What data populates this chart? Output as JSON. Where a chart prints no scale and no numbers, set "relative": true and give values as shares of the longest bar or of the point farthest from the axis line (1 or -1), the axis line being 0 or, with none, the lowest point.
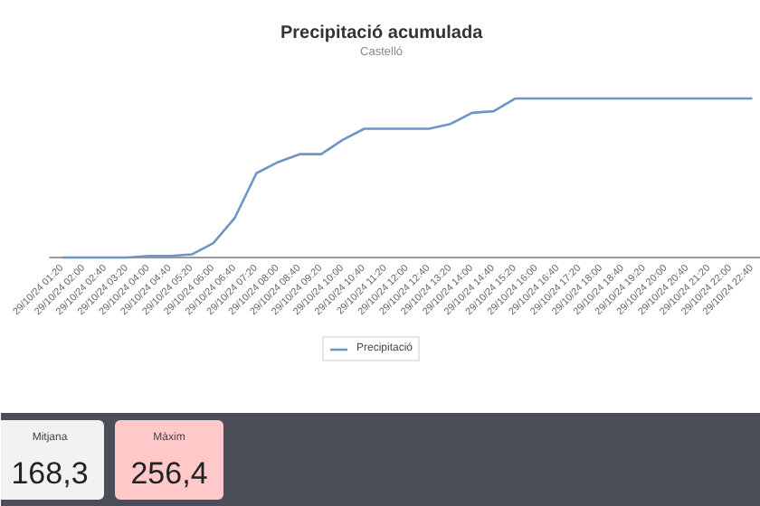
{
  "chart_data": [
    {
      "type": "line",
      "title": "Precipitació acumulada",
      "subtitle": "Castelló",
      "relative": true,
      "legend": "bottom",
      "categories": [
        "29/10/24 01:20",
        "29/10/24 02:00",
        "29/10/24 02:40",
        "29/10/24 03:20",
        "29/10/24 04:00",
        "29/10/24 04:40",
        "29/10/24 05:20",
        "29/10/24 06:00",
        "29/10/24 06:40",
        "29/10/24 07:20",
        "29/10/24 08:00",
        "29/10/24 08:40",
        "29/10/24 09:20",
        "29/10/24 10:00",
        "29/10/24 10:40",
        "29/10/24 11:20",
        "29/10/24 12:00",
        "29/10/24 12:40",
        "29/10/24 13:20",
        "29/10/24 14:00",
        "29/10/24 14:40",
        "29/10/24 15:20",
        "29/10/24 16:00",
        "29/10/24 16:40",
        "29/10/24 17:20",
        "29/10/24 18:00",
        "29/10/24 18:40",
        "29/10/24 19:20",
        "29/10/24 20:00",
        "29/10/24 20:40",
        "29/10/24 21:20",
        "29/10/24 22:00",
        "29/10/24 22:40"
      ],
      "series": [
        {
          "name": "Precipitació",
          "color": "#7094c4",
          "values": [
            0,
            0,
            0,
            0,
            0.01,
            0.01,
            0.02,
            0.09,
            0.25,
            0.53,
            0.6,
            0.65,
            0.65,
            0.74,
            0.81,
            0.81,
            0.81,
            0.81,
            0.84,
            0.91,
            0.92,
            1,
            1,
            1,
            1,
            1,
            1,
            1,
            1,
            1,
            1,
            1,
            1
          ]
        }
      ]
    },
    {
      "type": "other",
      "annotations": [
        "Mitjana",
        "168,3",
        "Màxim",
        "256,4"
      ]
    }
  ]
}
